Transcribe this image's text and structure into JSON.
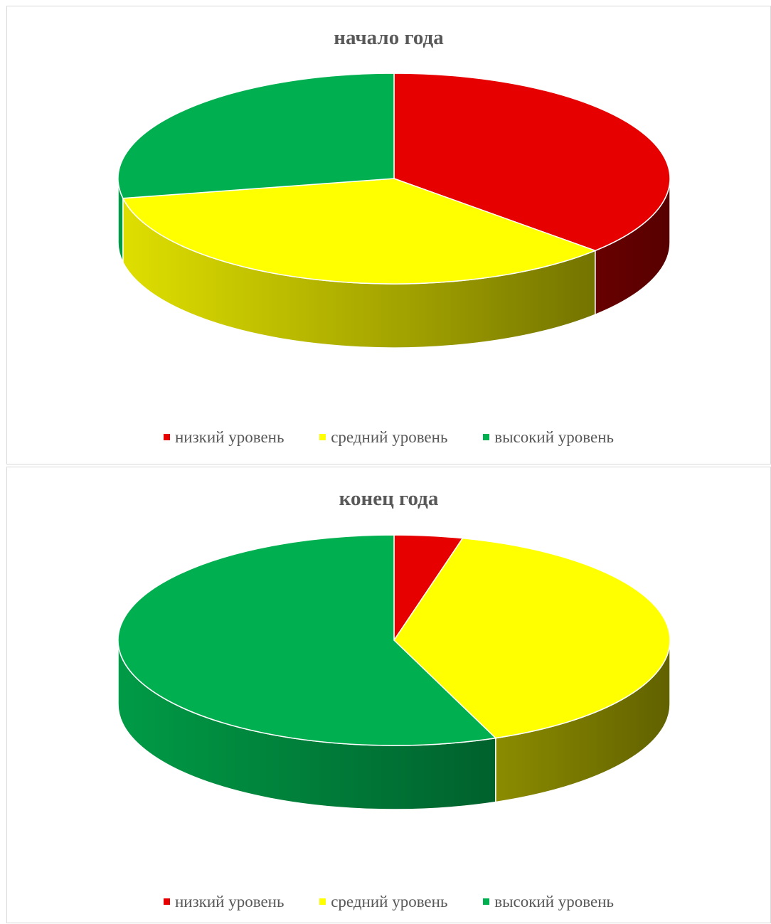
{
  "chart_data": [
    {
      "type": "pie",
      "title": "начало года",
      "categories": [
        "низкий уровень",
        "средний уровень",
        "высокий уровень"
      ],
      "values": [
        37,
        35,
        28
      ],
      "colors": [
        "#e60000",
        "#ffff00",
        "#00b050"
      ],
      "legend_position": "bottom"
    },
    {
      "type": "pie",
      "title": "конец года",
      "categories": [
        "низкий уровень",
        "средний уровень",
        "высокий уровень"
      ],
      "values": [
        4,
        40,
        56
      ],
      "colors": [
        "#e60000",
        "#ffff00",
        "#00b050"
      ],
      "legend_position": "bottom"
    }
  ]
}
